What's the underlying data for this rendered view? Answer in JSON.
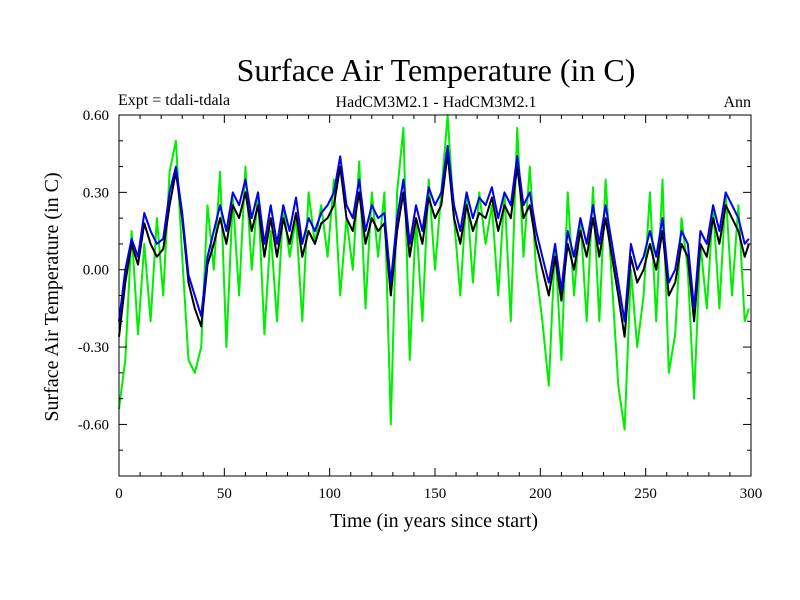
{
  "chart_data": {
    "type": "line",
    "title": "Surface Air Temperature (in C)",
    "subtitle_left": "Expt = tdali-tdala",
    "subtitle_center": "HadCM3M2.1 - HadCM3M2.1",
    "subtitle_right": "Ann",
    "xlabel": "Time (in years since start)",
    "ylabel": "Surface Air Temperature (in C)",
    "xlim": [
      0,
      300
    ],
    "ylim": [
      -0.8,
      0.6
    ],
    "xticks": [
      0,
      50,
      100,
      150,
      200,
      250,
      300
    ],
    "xtick_labels": [
      "0",
      "50",
      "100",
      "150",
      "200",
      "250",
      "300"
    ],
    "yticks": [
      0.6,
      0.3,
      0.0,
      -0.3,
      -0.6
    ],
    "ytick_labels": [
      "0.60",
      "0.30",
      "0.00",
      "-0.30",
      "-0.60"
    ],
    "series": [
      {
        "name": "green",
        "color": "#00ee00",
        "x": [
          0,
          3,
          6,
          9,
          12,
          15,
          18,
          21,
          24,
          27,
          30,
          33,
          36,
          39,
          42,
          45,
          48,
          51,
          54,
          57,
          60,
          63,
          66,
          69,
          72,
          75,
          78,
          81,
          84,
          87,
          90,
          93,
          96,
          99,
          102,
          105,
          108,
          111,
          114,
          117,
          120,
          123,
          126,
          129,
          132,
          135,
          138,
          141,
          144,
          147,
          150,
          153,
          156,
          159,
          162,
          165,
          168,
          171,
          174,
          177,
          180,
          183,
          186,
          189,
          192,
          195,
          198,
          201,
          204,
          207,
          210,
          213,
          216,
          219,
          222,
          225,
          228,
          231,
          234,
          237,
          240,
          243,
          246,
          249,
          252,
          255,
          258,
          261,
          264,
          267,
          270,
          273,
          276,
          279,
          282,
          285,
          288,
          291,
          294,
          297,
          299
        ],
        "values": [
          -0.54,
          -0.35,
          0.15,
          -0.25,
          0.1,
          -0.2,
          0.2,
          -0.1,
          0.38,
          0.5,
          0.05,
          -0.35,
          -0.4,
          -0.3,
          0.25,
          0.0,
          0.38,
          -0.3,
          0.28,
          -0.1,
          0.4,
          0.0,
          0.3,
          -0.25,
          0.15,
          -0.2,
          0.25,
          0.05,
          0.2,
          -0.2,
          0.3,
          0.1,
          0.25,
          0.05,
          0.35,
          -0.1,
          0.2,
          0.0,
          0.42,
          -0.15,
          0.3,
          0.05,
          0.3,
          -0.6,
          0.3,
          0.55,
          -0.35,
          0.2,
          -0.2,
          0.35,
          0.0,
          0.3,
          0.6,
          0.2,
          -0.1,
          0.3,
          -0.05,
          0.3,
          0.1,
          0.25,
          -0.1,
          0.3,
          -0.2,
          0.55,
          0.05,
          0.4,
          0.0,
          -0.2,
          -0.45,
          0.1,
          -0.35,
          0.3,
          -0.1,
          0.2,
          -0.2,
          0.32,
          -0.2,
          0.35,
          -0.05,
          -0.45,
          -0.62,
          0.0,
          -0.3,
          -0.1,
          0.3,
          -0.2,
          0.35,
          -0.4,
          -0.25,
          0.2,
          0.0,
          -0.5,
          0.1,
          -0.15,
          0.25,
          -0.15,
          0.3,
          -0.1,
          0.25,
          -0.2,
          -0.15
        ]
      },
      {
        "name": "black",
        "color": "#000000",
        "x": [
          0,
          3,
          6,
          9,
          12,
          15,
          18,
          21,
          24,
          27,
          30,
          33,
          36,
          39,
          42,
          45,
          48,
          51,
          54,
          57,
          60,
          63,
          66,
          69,
          72,
          75,
          78,
          81,
          84,
          87,
          90,
          93,
          96,
          99,
          102,
          105,
          108,
          111,
          114,
          117,
          120,
          123,
          126,
          129,
          132,
          135,
          138,
          141,
          144,
          147,
          150,
          153,
          156,
          159,
          162,
          165,
          168,
          171,
          174,
          177,
          180,
          183,
          186,
          189,
          192,
          195,
          198,
          201,
          204,
          207,
          210,
          213,
          216,
          219,
          222,
          225,
          228,
          231,
          234,
          237,
          240,
          243,
          246,
          249,
          252,
          255,
          258,
          261,
          264,
          267,
          270,
          273,
          276,
          279,
          282,
          285,
          288,
          291,
          294,
          297,
          299
        ],
        "values": [
          -0.26,
          -0.05,
          0.1,
          0.02,
          0.18,
          0.1,
          0.05,
          0.08,
          0.25,
          0.38,
          0.2,
          -0.05,
          -0.15,
          -0.22,
          0.02,
          0.1,
          0.2,
          0.1,
          0.25,
          0.2,
          0.3,
          0.15,
          0.25,
          0.05,
          0.2,
          0.05,
          0.2,
          0.1,
          0.22,
          0.05,
          0.15,
          0.1,
          0.18,
          0.2,
          0.25,
          0.4,
          0.2,
          0.15,
          0.3,
          0.1,
          0.2,
          0.15,
          0.18,
          -0.1,
          0.15,
          0.3,
          0.05,
          0.2,
          0.1,
          0.28,
          0.2,
          0.25,
          0.45,
          0.2,
          0.1,
          0.25,
          0.15,
          0.22,
          0.2,
          0.28,
          0.15,
          0.25,
          0.2,
          0.4,
          0.2,
          0.25,
          0.1,
          0.0,
          -0.1,
          0.05,
          -0.12,
          0.1,
          0.0,
          0.15,
          0.05,
          0.2,
          0.05,
          0.2,
          0.05,
          -0.1,
          -0.26,
          0.05,
          -0.05,
          0.0,
          0.1,
          0.0,
          0.15,
          -0.1,
          -0.05,
          0.1,
          0.05,
          -0.2,
          0.1,
          0.05,
          0.2,
          0.1,
          0.25,
          0.2,
          0.15,
          0.05,
          0.1
        ]
      },
      {
        "name": "blue",
        "color": "#0000ee",
        "x": [
          0,
          3,
          6,
          9,
          12,
          15,
          18,
          21,
          24,
          27,
          30,
          33,
          36,
          39,
          42,
          45,
          48,
          51,
          54,
          57,
          60,
          63,
          66,
          69,
          72,
          75,
          78,
          81,
          84,
          87,
          90,
          93,
          96,
          99,
          102,
          105,
          108,
          111,
          114,
          117,
          120,
          123,
          126,
          129,
          132,
          135,
          138,
          141,
          144,
          147,
          150,
          153,
          156,
          159,
          162,
          165,
          168,
          171,
          174,
          177,
          180,
          183,
          186,
          189,
          192,
          195,
          198,
          201,
          204,
          207,
          210,
          213,
          216,
          219,
          222,
          225,
          228,
          231,
          234,
          237,
          240,
          243,
          246,
          249,
          252,
          255,
          258,
          261,
          264,
          267,
          270,
          273,
          276,
          279,
          282,
          285,
          288,
          291,
          294,
          297,
          299
        ],
        "values": [
          -0.2,
          0.0,
          0.12,
          0.05,
          0.22,
          0.15,
          0.1,
          0.12,
          0.3,
          0.4,
          0.22,
          -0.02,
          -0.1,
          -0.18,
          0.05,
          0.15,
          0.25,
          0.15,
          0.3,
          0.25,
          0.35,
          0.2,
          0.3,
          0.1,
          0.25,
          0.1,
          0.25,
          0.15,
          0.28,
          0.1,
          0.2,
          0.15,
          0.22,
          0.25,
          0.3,
          0.44,
          0.25,
          0.2,
          0.35,
          0.15,
          0.25,
          0.2,
          0.22,
          -0.05,
          0.2,
          0.35,
          0.1,
          0.25,
          0.15,
          0.32,
          0.25,
          0.3,
          0.48,
          0.25,
          0.15,
          0.3,
          0.2,
          0.28,
          0.25,
          0.32,
          0.2,
          0.3,
          0.25,
          0.44,
          0.25,
          0.3,
          0.15,
          0.05,
          -0.05,
          0.1,
          -0.08,
          0.15,
          0.05,
          0.2,
          0.1,
          0.25,
          0.1,
          0.25,
          0.1,
          -0.05,
          -0.2,
          0.1,
          0.0,
          0.05,
          0.15,
          0.05,
          0.2,
          -0.05,
          0.0,
          0.15,
          0.1,
          -0.15,
          0.15,
          0.1,
          0.25,
          0.15,
          0.3,
          0.25,
          0.2,
          0.1,
          0.12
        ]
      }
    ]
  }
}
